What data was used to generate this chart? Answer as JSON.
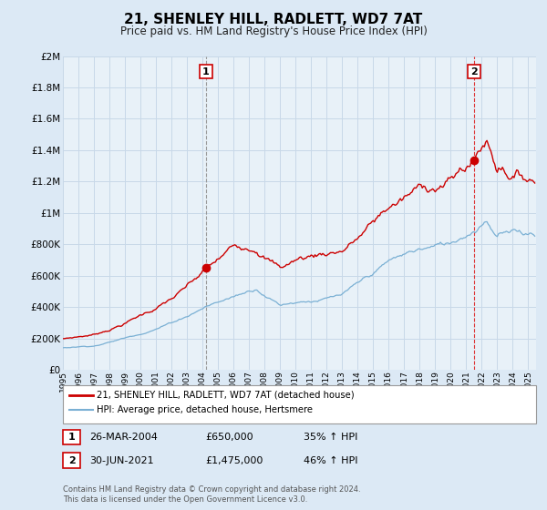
{
  "title": "21, SHENLEY HILL, RADLETT, WD7 7AT",
  "subtitle": "Price paid vs. HM Land Registry's House Price Index (HPI)",
  "bg_color": "#dce9f5",
  "plot_bg_color": "#e8f1f8",
  "grid_color": "#c8d8e8",
  "red_line_color": "#cc0000",
  "blue_line_color": "#7ab0d4",
  "sale1_date_label": "26-MAR-2004",
  "sale1_price": 650000,
  "sale1_price_label": "£650,000",
  "sale1_hpi_label": "35% ↑ HPI",
  "sale2_date_label": "30-JUN-2021",
  "sale2_price": 1475000,
  "sale2_price_label": "£1,475,000",
  "sale2_hpi_label": "46% ↑ HPI",
  "sale1_x": 2004.23,
  "sale2_x": 2021.5,
  "vline1_x": 2004.23,
  "vline2_x": 2021.5,
  "ylim": [
    0,
    2000000
  ],
  "xlim_start": 1995.0,
  "xlim_end": 2025.5,
  "yticks": [
    0,
    200000,
    400000,
    600000,
    800000,
    1000000,
    1200000,
    1400000,
    1600000,
    1800000,
    2000000
  ],
  "xtick_years": [
    1995,
    1996,
    1997,
    1998,
    1999,
    2000,
    2001,
    2002,
    2003,
    2004,
    2005,
    2006,
    2007,
    2008,
    2009,
    2010,
    2011,
    2012,
    2013,
    2014,
    2015,
    2016,
    2017,
    2018,
    2019,
    2020,
    2021,
    2022,
    2023,
    2024,
    2025
  ],
  "legend_label_red": "21, SHENLEY HILL, RADLETT, WD7 7AT (detached house)",
  "legend_label_blue": "HPI: Average price, detached house, Hertsmere",
  "footer_text": "Contains HM Land Registry data © Crown copyright and database right 2024.\nThis data is licensed under the Open Government Licence v3.0."
}
